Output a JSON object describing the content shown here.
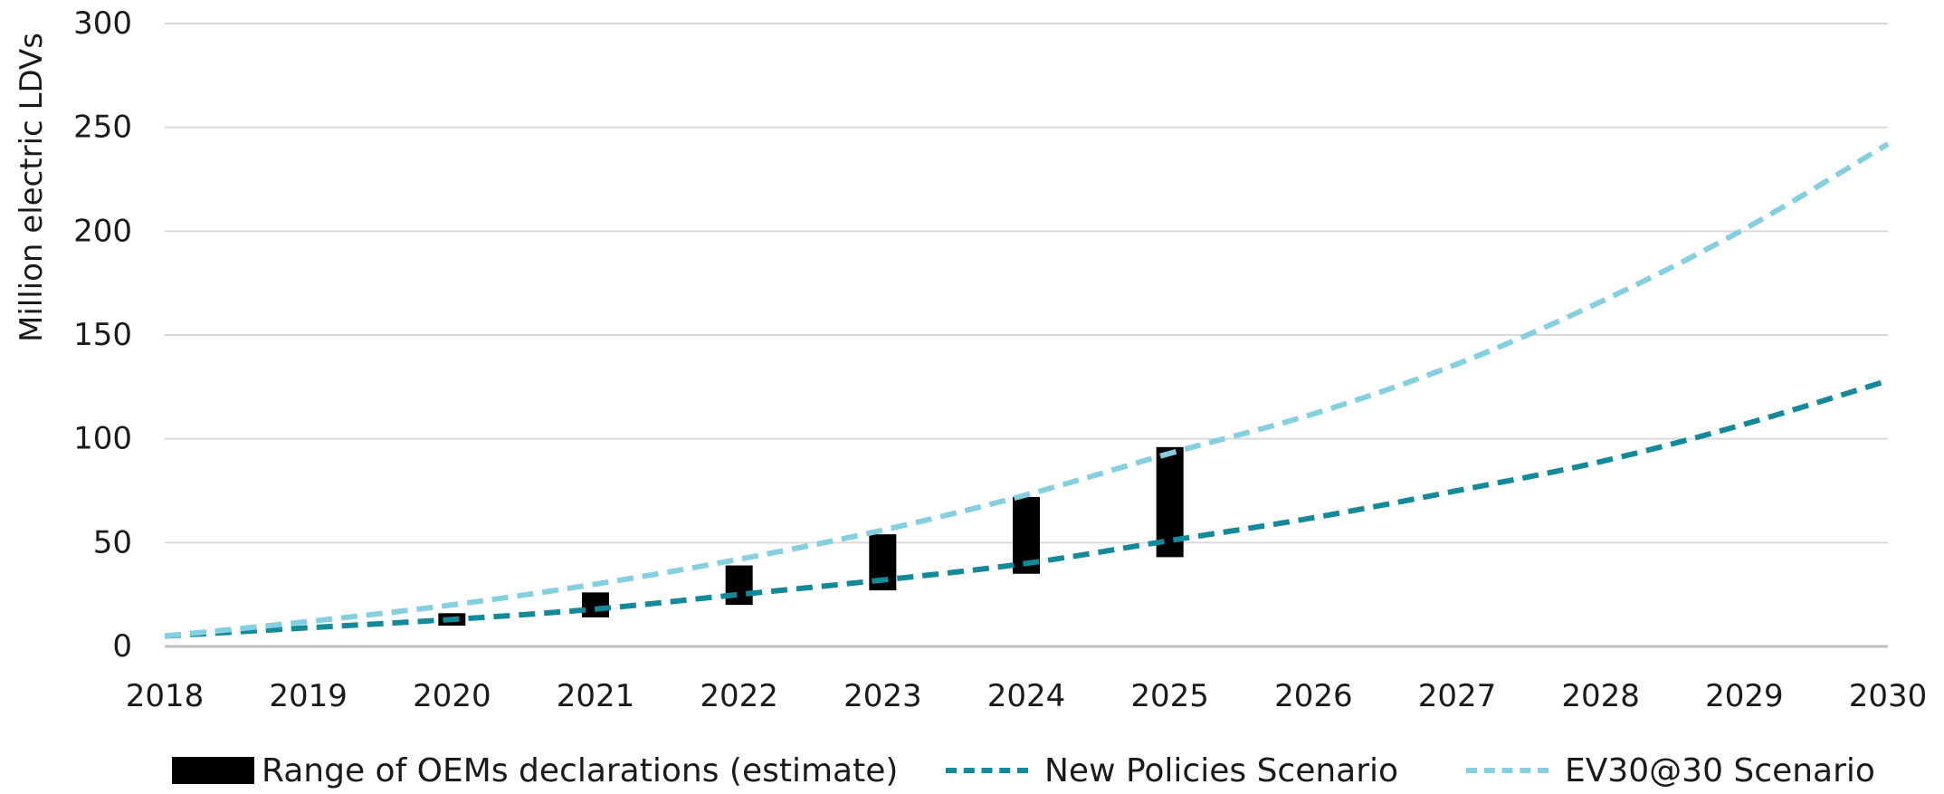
{
  "chart_data": {
    "type": "line",
    "title": "",
    "xlabel": "",
    "ylabel": "Million electric LDVs",
    "ylim": [
      0,
      300
    ],
    "yticks": [
      "0",
      "50",
      "100",
      "150",
      "200",
      "250",
      "300"
    ],
    "xlim": [
      2018,
      2030
    ],
    "xticks": [
      "2018",
      "2019",
      "2020",
      "2021",
      "2022",
      "2023",
      "2024",
      "2025",
      "2026",
      "2027",
      "2028",
      "2029",
      "2030"
    ],
    "grid": true,
    "legend_position": "bottom",
    "ranges": {
      "name": "Range of OEMs declarations (estimate)",
      "color": "#000000",
      "x": [
        2020,
        2021,
        2022,
        2023,
        2024,
        2025
      ],
      "low": [
        10,
        14,
        20,
        27,
        35,
        43
      ],
      "high": [
        16,
        26,
        39,
        54,
        72,
        96
      ]
    },
    "series": [
      {
        "name": "New Policies Scenario",
        "color": "#138a9a",
        "x": [
          2018,
          2019,
          2020,
          2021,
          2022,
          2023,
          2024,
          2025,
          2026,
          2027,
          2028,
          2029,
          2030
        ],
        "values": [
          5,
          9,
          13,
          18,
          25,
          32,
          40,
          51,
          62,
          75,
          89,
          107,
          128
        ]
      },
      {
        "name": "EV30@30 Scenario",
        "color": "#84cfe0",
        "x": [
          2018,
          2019,
          2020,
          2021,
          2022,
          2023,
          2024,
          2025,
          2026,
          2027,
          2028,
          2029,
          2030
        ],
        "values": [
          5,
          12,
          20,
          30,
          42,
          56,
          73,
          93,
          112,
          136,
          166,
          201,
          242
        ]
      }
    ]
  }
}
